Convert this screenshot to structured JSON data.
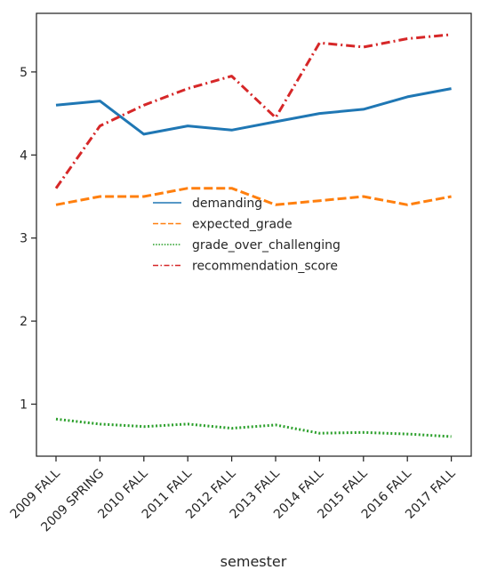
{
  "chart_data": {
    "type": "line",
    "title": "",
    "xlabel": "semester",
    "ylabel": "",
    "categories": [
      "2009 FALL",
      "2009 SPRING",
      "2010 FALL",
      "2011 FALL",
      "2012 FALL",
      "2013 FALL",
      "2014 FALL",
      "2015 FALL",
      "2016 FALL",
      "2017 FALL"
    ],
    "ylim": [
      0.35,
      5.7
    ],
    "yticks": [
      1,
      2,
      3,
      4,
      5
    ],
    "grid": false,
    "legend_position": "center",
    "series": [
      {
        "name": "demanding",
        "color": "#1f77b4",
        "style": "solid",
        "values": [
          4.6,
          4.65,
          4.25,
          4.35,
          4.3,
          4.4,
          4.5,
          4.55,
          4.7,
          4.8
        ]
      },
      {
        "name": "expected_grade",
        "color": "#ff7f0e",
        "style": "dashed",
        "values": [
          3.4,
          3.5,
          3.5,
          3.6,
          3.6,
          3.4,
          3.45,
          3.5,
          3.4,
          3.5
        ]
      },
      {
        "name": "grade_over_challenging",
        "color": "#2ca02c",
        "style": "dotted",
        "values": [
          0.82,
          0.76,
          0.73,
          0.76,
          0.71,
          0.75,
          0.65,
          0.66,
          0.64,
          0.61
        ]
      },
      {
        "name": "recommendation_score",
        "color": "#d62728",
        "style": "dashdot",
        "values": [
          3.6,
          4.35,
          4.6,
          4.8,
          4.95,
          4.45,
          5.35,
          5.3,
          5.4,
          5.45
        ]
      }
    ]
  }
}
